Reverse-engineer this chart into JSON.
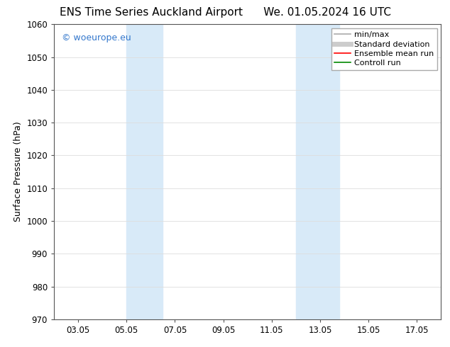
{
  "title_left": "ENS Time Series Auckland Airport",
  "title_right": "We. 01.05.2024 16 UTC",
  "ylabel": "Surface Pressure (hPa)",
  "ylim": [
    970,
    1060
  ],
  "yticks": [
    970,
    980,
    990,
    1000,
    1010,
    1020,
    1030,
    1040,
    1050,
    1060
  ],
  "xtick_labels": [
    "03.05",
    "05.05",
    "07.05",
    "09.05",
    "11.05",
    "13.05",
    "15.05",
    "17.05"
  ],
  "xtick_positions": [
    2,
    4,
    6,
    8,
    10,
    12,
    14,
    16
  ],
  "xlim": [
    1,
    17
  ],
  "shaded_bands": [
    {
      "xmin": 4.0,
      "xmax": 5.5
    },
    {
      "xmin": 11.0,
      "xmax": 12.8
    }
  ],
  "shade_color": "#d8eaf8",
  "watermark_text": "© woeurope.eu",
  "watermark_color": "#3377cc",
  "legend_entries": [
    {
      "label": "min/max",
      "color": "#aaaaaa",
      "lw": 1.2
    },
    {
      "label": "Standard deviation",
      "color": "#cccccc",
      "lw": 5
    },
    {
      "label": "Ensemble mean run",
      "color": "#ff0000",
      "lw": 1.2
    },
    {
      "label": "Controll run",
      "color": "#008800",
      "lw": 1.2
    }
  ],
  "bg_color": "#ffffff",
  "spine_color": "#555555",
  "title_fontsize": 11,
  "ylabel_fontsize": 9,
  "tick_fontsize": 8.5,
  "legend_fontsize": 8,
  "watermark_fontsize": 9
}
